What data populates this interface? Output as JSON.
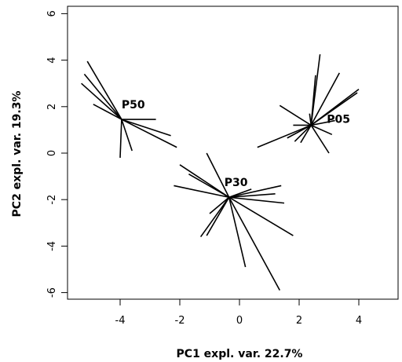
{
  "chart_data": {
    "type": "scatter",
    "xlabel": "PC1 expl. var. 22.7%",
    "ylabel": "PC2 expl. var. 19.3%",
    "xlim": [
      -5.5,
      5.3
    ],
    "ylim": [
      -6.4,
      6.4
    ],
    "x_ticks": [
      -4,
      -2,
      0,
      2,
      4
    ],
    "y_ticks": [
      -6,
      -4,
      -2,
      0,
      2,
      4,
      6
    ],
    "x_tick_labels": [
      "-4",
      "-2",
      "0",
      "2",
      "4"
    ],
    "y_tick_labels": [
      "-6",
      "-4",
      "-2",
      "0",
      "2",
      "4",
      "6"
    ],
    "grid": false,
    "legend": "none",
    "line_color": "#000000",
    "groups": [
      {
        "label": "P50",
        "centroid": [
          -3.95,
          1.45
        ],
        "points": [
          [
            -5.1,
            3.95
          ],
          [
            -5.2,
            3.4
          ],
          [
            -5.3,
            3.0
          ],
          [
            -4.9,
            2.1
          ],
          [
            -2.1,
            0.25
          ],
          [
            -2.3,
            0.75
          ],
          [
            -2.8,
            1.45
          ],
          [
            -3.6,
            0.1
          ],
          [
            -4.0,
            -0.2
          ]
        ]
      },
      {
        "label": "P05",
        "centroid": [
          2.4,
          1.2
        ],
        "points": [
          [
            2.7,
            4.25
          ],
          [
            2.55,
            3.35
          ],
          [
            3.35,
            3.45
          ],
          [
            4.0,
            2.75
          ],
          [
            3.95,
            2.6
          ],
          [
            1.35,
            2.05
          ],
          [
            1.8,
            1.2
          ],
          [
            3.2,
            1.4
          ],
          [
            3.0,
            0.0
          ],
          [
            3.1,
            0.8
          ],
          [
            0.6,
            0.25
          ],
          [
            1.6,
            0.65
          ],
          [
            1.85,
            0.5
          ],
          [
            2.05,
            0.45
          ],
          [
            2.35,
            1.7
          ]
        ]
      },
      {
        "label": "P30",
        "centroid": [
          -0.35,
          -1.9
        ],
        "points": [
          [
            -2.0,
            -0.5
          ],
          [
            -1.7,
            -0.9
          ],
          [
            -2.2,
            -1.4
          ],
          [
            -1.1,
            0.0
          ],
          [
            1.4,
            -1.4
          ],
          [
            1.5,
            -2.15
          ],
          [
            1.2,
            -1.75
          ],
          [
            0.4,
            -1.55
          ],
          [
            -1.0,
            -2.6
          ],
          [
            -1.3,
            -3.6
          ],
          [
            -1.1,
            -3.55
          ],
          [
            0.2,
            -4.9
          ],
          [
            1.35,
            -5.9
          ],
          [
            1.8,
            -3.55
          ]
        ]
      }
    ]
  }
}
